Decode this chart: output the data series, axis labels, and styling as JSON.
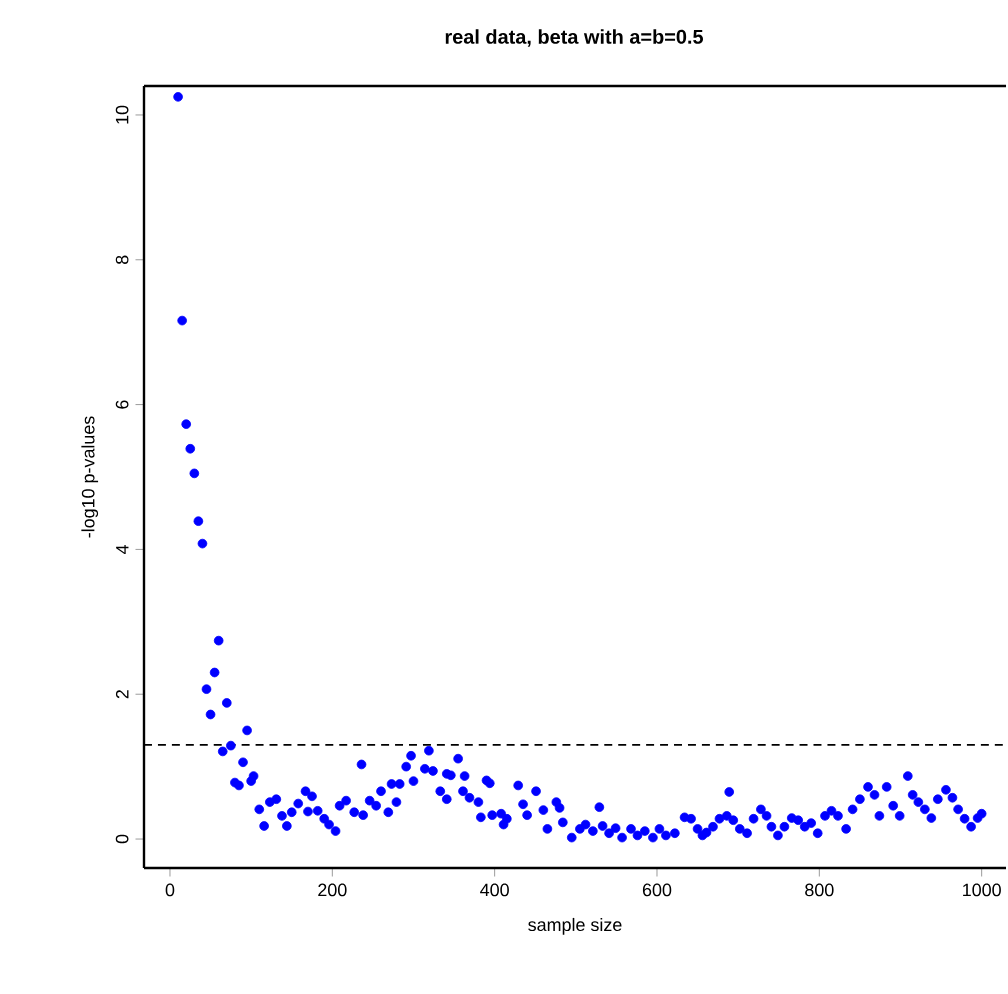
{
  "chart_data": {
    "type": "scatter",
    "title": "real data, beta with a=b=0.5",
    "xlabel": "sample size",
    "ylabel": "-log10 p-values",
    "x": [
      10,
      15,
      20,
      25,
      30,
      35,
      40,
      45,
      50,
      55,
      60,
      65,
      70,
      75,
      80,
      85,
      90,
      95,
      100,
      103,
      110,
      116,
      123,
      131,
      138,
      144,
      150,
      158,
      167,
      170,
      175,
      182,
      190,
      196,
      204,
      209,
      217,
      227,
      236,
      238,
      246,
      254,
      260,
      269,
      273,
      279,
      283,
      291,
      297,
      300,
      314,
      319,
      324,
      333,
      341,
      341,
      346,
      355,
      361,
      363,
      369,
      380,
      383,
      390,
      394,
      397,
      408,
      411,
      415,
      429,
      435,
      440,
      451,
      460,
      465,
      476,
      480,
      484,
      495,
      505,
      512,
      521,
      529,
      533,
      541,
      549,
      557,
      568,
      576,
      585,
      595,
      603,
      611,
      622,
      634,
      642,
      650,
      656,
      661,
      669,
      677,
      686,
      689,
      694,
      702,
      711,
      719,
      728,
      735,
      741,
      749,
      757,
      766,
      774,
      782,
      790,
      798,
      807,
      815,
      823,
      833,
      841,
      850,
      860,
      868,
      874,
      883,
      891,
      899,
      909,
      915,
      922,
      930,
      938,
      946,
      956,
      964,
      971,
      979,
      987,
      995,
      1000
    ],
    "values": [
      10.25,
      7.16,
      5.73,
      5.39,
      5.05,
      4.39,
      4.08,
      2.07,
      1.72,
      2.3,
      2.74,
      1.21,
      1.88,
      1.29,
      0.78,
      0.74,
      1.06,
      1.5,
      0.8,
      0.87,
      0.41,
      0.18,
      0.51,
      0.55,
      0.32,
      0.18,
      0.37,
      0.49,
      0.66,
      0.38,
      0.59,
      0.39,
      0.28,
      0.2,
      0.11,
      0.46,
      0.53,
      0.37,
      1.03,
      0.33,
      0.53,
      0.46,
      0.66,
      0.37,
      0.76,
      0.51,
      0.76,
      1.0,
      1.15,
      0.8,
      0.97,
      1.22,
      0.94,
      0.66,
      0.9,
      0.55,
      0.88,
      1.11,
      0.66,
      0.87,
      0.57,
      0.51,
      0.3,
      0.81,
      0.77,
      0.33,
      0.35,
      0.2,
      0.28,
      0.74,
      0.48,
      0.33,
      0.66,
      0.4,
      0.14,
      0.51,
      0.43,
      0.23,
      0.02,
      0.14,
      0.2,
      0.11,
      0.44,
      0.18,
      0.08,
      0.15,
      0.02,
      0.14,
      0.05,
      0.11,
      0.02,
      0.14,
      0.05,
      0.08,
      0.3,
      0.28,
      0.14,
      0.05,
      0.09,
      0.17,
      0.28,
      0.32,
      0.65,
      0.26,
      0.14,
      0.08,
      0.28,
      0.41,
      0.32,
      0.17,
      0.05,
      0.17,
      0.29,
      0.26,
      0.17,
      0.22,
      0.08,
      0.32,
      0.39,
      0.32,
      0.14,
      0.41,
      0.55,
      0.72,
      0.61,
      0.32,
      0.72,
      0.46,
      0.32,
      0.87,
      0.61,
      0.51,
      0.41,
      0.29,
      0.55,
      0.68,
      0.57,
      0.41,
      0.28,
      0.17,
      0.29,
      0.35
    ],
    "color": "#0000ff",
    "marker": "circle",
    "xlim": [
      -32,
      1030
    ],
    "ylim": [
      -0.4,
      10.4
    ],
    "xticks": [
      0,
      200,
      400,
      600,
      800,
      1000
    ],
    "yticks": [
      0,
      2,
      4,
      6,
      8,
      10
    ],
    "ref_lines": [
      {
        "axis": "y",
        "value": 1.3,
        "color": "#000000",
        "line_style": "dashed"
      }
    ]
  }
}
